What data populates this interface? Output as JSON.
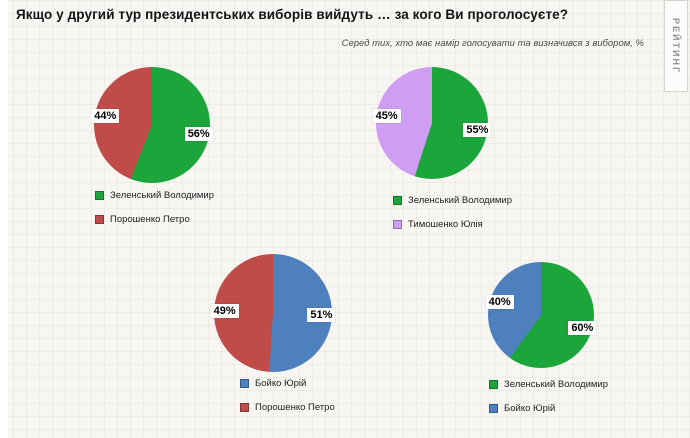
{
  "header": {
    "title": "Якщо у другий тур президентських виборів вийдуть … за кого Ви проголосуєте?",
    "subtitle": "Серед тих, хто має намір голосувати  та визначився з вибором, %",
    "watermark": "РЕЙТИНГ"
  },
  "colors": {
    "green": "#1ca53b",
    "red": "#bf4c49",
    "blue": "#4e80bd",
    "purple": "#cf9ef3"
  },
  "chart_data": [
    {
      "type": "pie",
      "position": "top-left",
      "value_suffix": "%",
      "legend_position": "bottom-left",
      "series": [
        {
          "label": "Зеленський Володимир",
          "value": 56,
          "color": "#1ca53b"
        },
        {
          "label": "Порошенко Петро",
          "value": 44,
          "color": "#bf4c49"
        }
      ]
    },
    {
      "type": "pie",
      "position": "top-right",
      "value_suffix": "%",
      "legend_position": "bottom-left",
      "series": [
        {
          "label": "Зеленський Володимир",
          "value": 55,
          "color": "#1ca53b"
        },
        {
          "label": "Тимошенко Юлія",
          "value": 45,
          "color": "#cf9ef3"
        }
      ]
    },
    {
      "type": "pie",
      "position": "bottom-center",
      "value_suffix": "%",
      "legend_position": "bottom-left",
      "series": [
        {
          "label": "Бойко Юрій",
          "value": 51,
          "color": "#4e80bd"
        },
        {
          "label": "Порошенко Петро",
          "value": 49,
          "color": "#bf4c49"
        }
      ]
    },
    {
      "type": "pie",
      "position": "bottom-right",
      "value_suffix": "%",
      "legend_position": "bottom-left",
      "series": [
        {
          "label": "Зеленський Володимир",
          "value": 60,
          "color": "#1ca53b"
        },
        {
          "label": "Бойко Юрій",
          "value": 40,
          "color": "#4e80bd"
        }
      ]
    }
  ]
}
